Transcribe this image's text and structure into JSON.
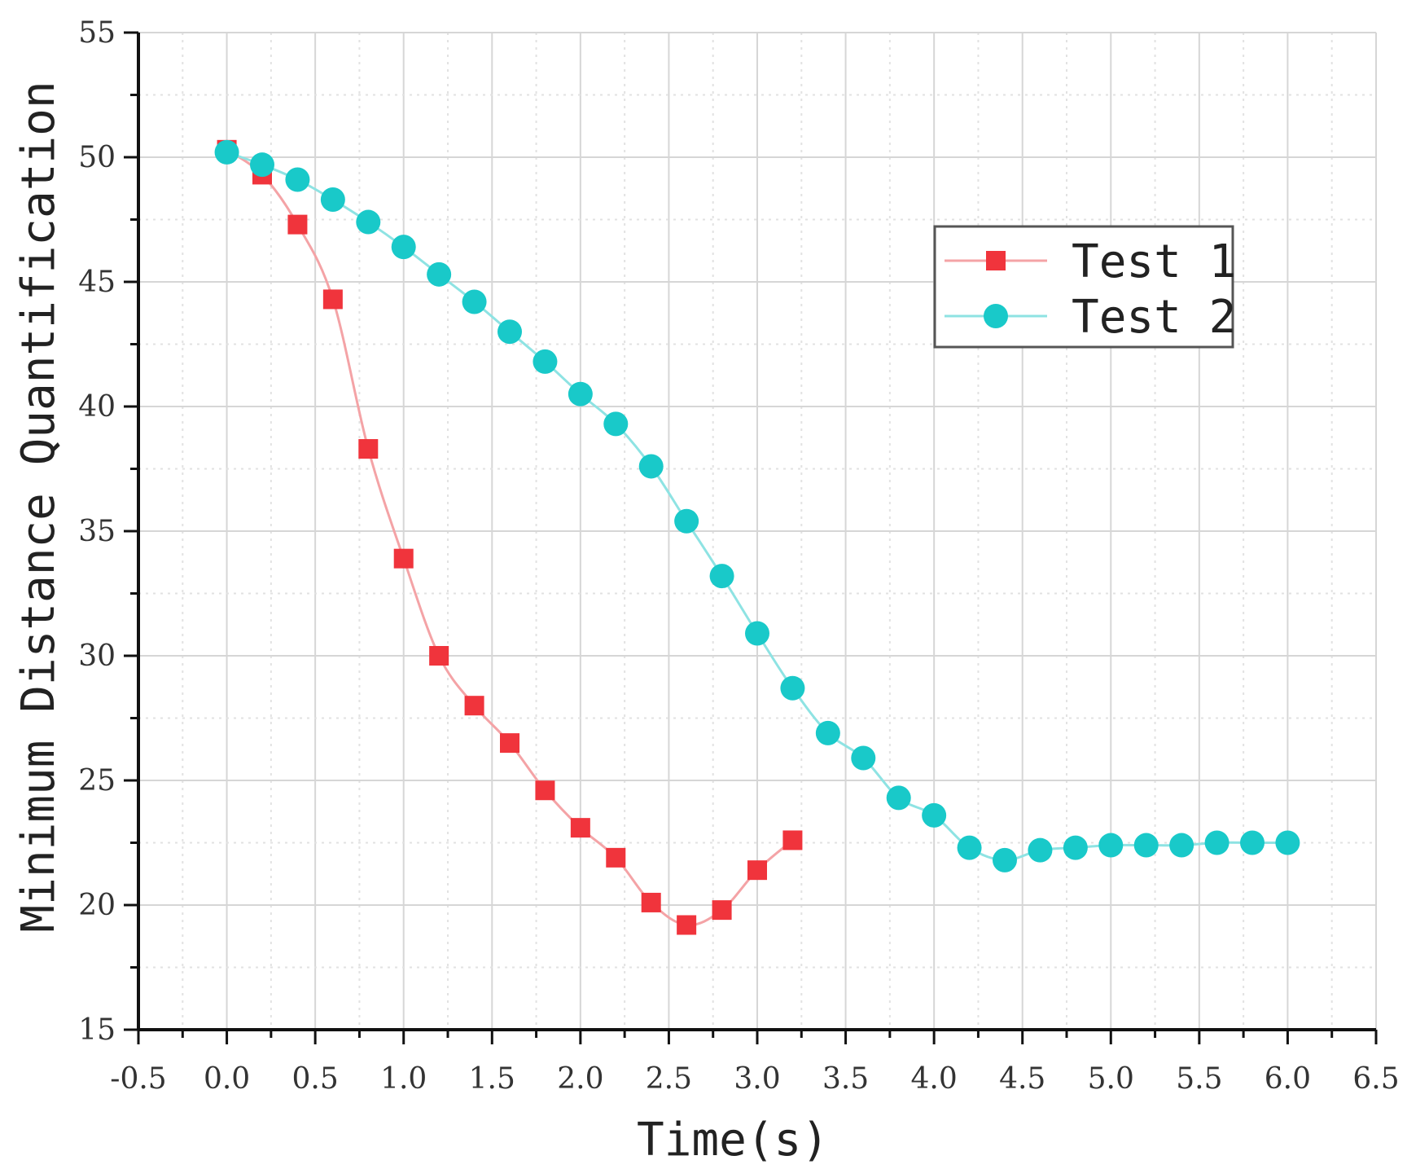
{
  "chart_data": {
    "type": "line",
    "title": "",
    "xlabel": "Time(s)",
    "ylabel": "Minimum Distance Quantification",
    "xlim": [
      -0.5,
      6.5
    ],
    "ylim": [
      15,
      55
    ],
    "x_ticks": [
      "-0.5",
      "0.0",
      "0.5",
      "1.0",
      "1.5",
      "2.0",
      "2.5",
      "3.0",
      "3.5",
      "4.0",
      "4.5",
      "5.0",
      "5.5",
      "6.0",
      "6.5"
    ],
    "y_ticks": [
      "15",
      "20",
      "25",
      "30",
      "35",
      "40",
      "45",
      "50",
      "55"
    ],
    "grid": true,
    "legend_position": "top-right",
    "series": [
      {
        "name": "Test 1",
        "color": "#f0343c",
        "line_color": "#f4a3a6",
        "marker": "square",
        "x": [
          0.0,
          0.2,
          0.4,
          0.6,
          0.8,
          1.0,
          1.2,
          1.4,
          1.6,
          1.8,
          2.0,
          2.2,
          2.4,
          2.6,
          2.8,
          3.0,
          3.2
        ],
        "y": [
          50.3,
          49.3,
          47.3,
          44.3,
          38.3,
          33.9,
          30.0,
          28.0,
          26.5,
          24.6,
          23.1,
          21.9,
          20.1,
          19.2,
          19.8,
          21.4,
          22.6
        ]
      },
      {
        "name": "Test 2",
        "color": "#19c9c9",
        "line_color": "#8ee3e3",
        "marker": "circle",
        "x": [
          0.0,
          0.2,
          0.4,
          0.6,
          0.8,
          1.0,
          1.2,
          1.4,
          1.6,
          1.8,
          2.0,
          2.2,
          2.4,
          2.6,
          2.8,
          3.0,
          3.2,
          3.4,
          3.6,
          3.8,
          4.0,
          4.2,
          4.4,
          4.6,
          4.8,
          5.0,
          5.2,
          5.4,
          5.6,
          5.8,
          6.0
        ],
        "y": [
          50.2,
          49.7,
          49.1,
          48.3,
          47.4,
          46.4,
          45.3,
          44.2,
          43.0,
          41.8,
          40.5,
          39.3,
          37.6,
          35.4,
          33.2,
          30.9,
          28.7,
          26.9,
          25.9,
          24.3,
          23.6,
          22.3,
          21.8,
          22.2,
          22.3,
          22.4,
          22.4,
          22.4,
          22.5,
          22.5,
          22.5
        ]
      }
    ]
  }
}
